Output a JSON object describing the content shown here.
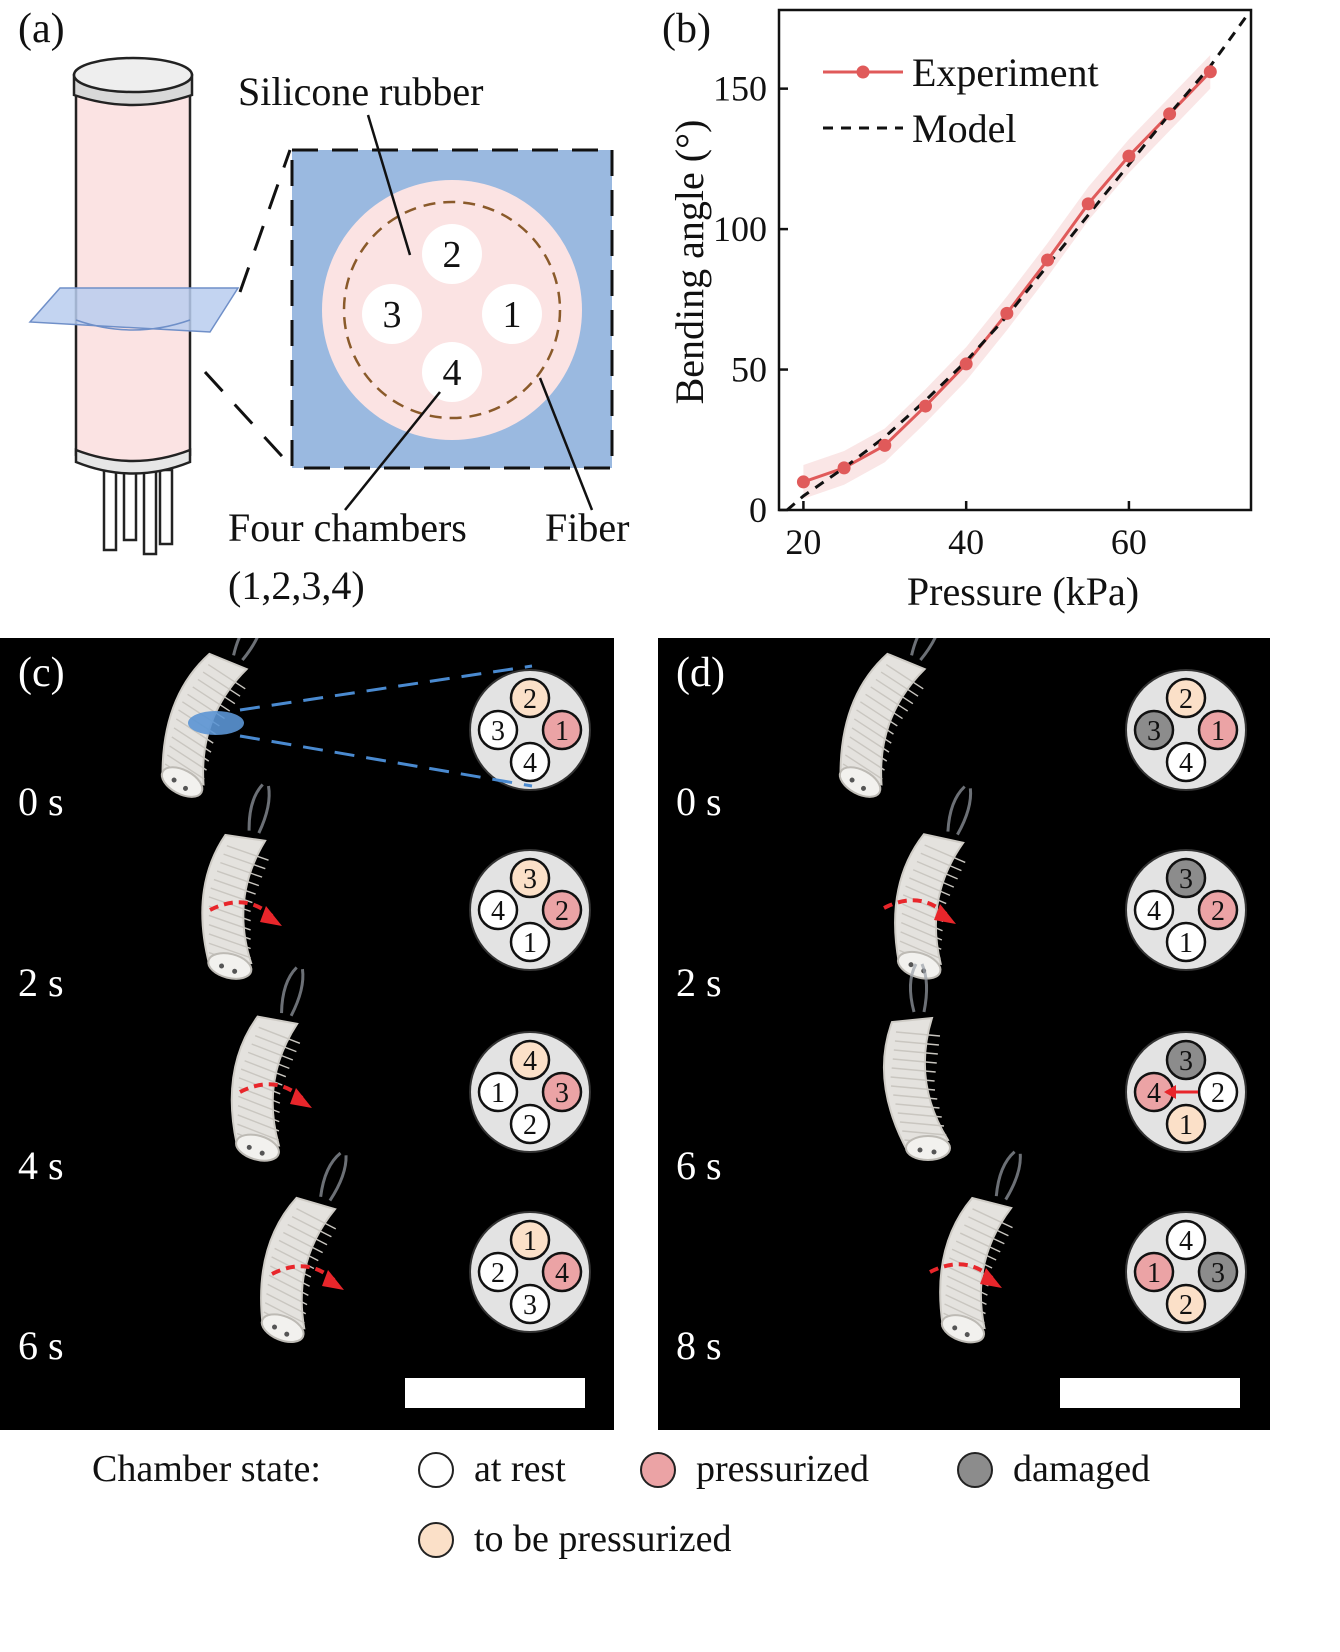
{
  "panel_a": {
    "letter": "(a)",
    "silicone_label": "Silicone rubber",
    "chambers_label_line1": "Four chambers",
    "chambers_label_line2": "(1,2,3,4)",
    "fiber_label": "Fiber",
    "chamber_numbers": [
      "1",
      "2",
      "3",
      "4"
    ],
    "colors": {
      "tube": "#fbe3e3",
      "square": "#9ab9e0",
      "disk": "#fbe3e3",
      "fiber": "#8a5a2a",
      "plane": "#b9cdef"
    }
  },
  "panel_b": {
    "letter": "(b)",
    "chart_data": {
      "type": "line",
      "xlabel": "Pressure (kPa)",
      "ylabel": "Bending angle (°)",
      "xlim": [
        17,
        75
      ],
      "ylim": [
        0,
        178
      ],
      "xticks": [
        20,
        40,
        60
      ],
      "yticks": [
        0,
        50,
        100,
        150
      ],
      "grid": false,
      "legend_position": "top-left",
      "series": [
        {
          "name": "Experiment",
          "style": "solid-marker",
          "color": "#e05a5a",
          "x": [
            20,
            25,
            30,
            35,
            40,
            45,
            50,
            55,
            60,
            65,
            70
          ],
          "y": [
            10,
            15,
            23,
            37,
            52,
            70,
            89,
            109,
            126,
            141,
            156
          ]
        },
        {
          "name": "Model",
          "style": "dashed",
          "color": "#111111",
          "x": [
            18,
            20,
            25,
            30,
            35,
            40,
            45,
            50,
            55,
            60,
            65,
            70,
            75
          ],
          "y": [
            0,
            5,
            15,
            26,
            39,
            53,
            69,
            87,
            105,
            123,
            141,
            158,
            178
          ]
        }
      ]
    }
  },
  "panel_c": {
    "letter": "(c)",
    "frames": [
      {
        "time": "0 s",
        "chambers": {
          "top": {
            "num": "2",
            "state": "to_be"
          },
          "right": {
            "num": "1",
            "state": "pressurized"
          },
          "bottom": {
            "num": "4",
            "state": "rest"
          },
          "left": {
            "num": "3",
            "state": "rest"
          }
        }
      },
      {
        "time": "2 s",
        "chambers": {
          "top": {
            "num": "3",
            "state": "to_be"
          },
          "right": {
            "num": "2",
            "state": "pressurized"
          },
          "bottom": {
            "num": "1",
            "state": "rest"
          },
          "left": {
            "num": "4",
            "state": "rest"
          }
        }
      },
      {
        "time": "4 s",
        "chambers": {
          "top": {
            "num": "4",
            "state": "to_be"
          },
          "right": {
            "num": "3",
            "state": "pressurized"
          },
          "bottom": {
            "num": "2",
            "state": "rest"
          },
          "left": {
            "num": "1",
            "state": "rest"
          }
        }
      },
      {
        "time": "6 s",
        "chambers": {
          "top": {
            "num": "1",
            "state": "to_be"
          },
          "right": {
            "num": "4",
            "state": "pressurized"
          },
          "bottom": {
            "num": "3",
            "state": "rest"
          },
          "left": {
            "num": "2",
            "state": "rest"
          }
        }
      }
    ]
  },
  "panel_d": {
    "letter": "(d)",
    "frames": [
      {
        "time": "0 s",
        "chambers": {
          "top": {
            "num": "2",
            "state": "to_be"
          },
          "right": {
            "num": "1",
            "state": "pressurized"
          },
          "bottom": {
            "num": "4",
            "state": "rest"
          },
          "left": {
            "num": "3",
            "state": "damaged"
          }
        }
      },
      {
        "time": "2 s",
        "chambers": {
          "top": {
            "num": "3",
            "state": "damaged"
          },
          "right": {
            "num": "2",
            "state": "pressurized"
          },
          "bottom": {
            "num": "1",
            "state": "rest"
          },
          "left": {
            "num": "4",
            "state": "rest"
          }
        }
      },
      {
        "time": "6 s",
        "chambers": {
          "top": {
            "num": "3",
            "state": "damaged"
          },
          "right": {
            "num": "2",
            "state": "rest"
          },
          "bottom": {
            "num": "1",
            "state": "to_be"
          },
          "left": {
            "num": "4",
            "state": "pressurized"
          }
        }
      },
      {
        "time": "8 s",
        "chambers": {
          "top": {
            "num": "4",
            "state": "rest"
          },
          "right": {
            "num": "3",
            "state": "damaged"
          },
          "bottom": {
            "num": "2",
            "state": "to_be"
          },
          "left": {
            "num": "1",
            "state": "pressurized"
          }
        }
      }
    ]
  },
  "legend": {
    "title": "Chamber state:",
    "items": [
      {
        "label": "at rest",
        "color": "#ffffff"
      },
      {
        "label": "pressurized",
        "color": "#eba3a5"
      },
      {
        "label": "damaged",
        "color": "#8c8c8c"
      },
      {
        "label": "to be pressurized",
        "color": "#fbe0c8"
      }
    ]
  },
  "state_colors": {
    "rest": "#ffffff",
    "pressurized": "#eba3a5",
    "damaged": "#8c8c8c",
    "to_be": "#fbe0c8"
  },
  "accent_colors": {
    "arrow": "#e8262b",
    "actuator": "#e4e2de",
    "dash_link": "#4a8ad0"
  }
}
